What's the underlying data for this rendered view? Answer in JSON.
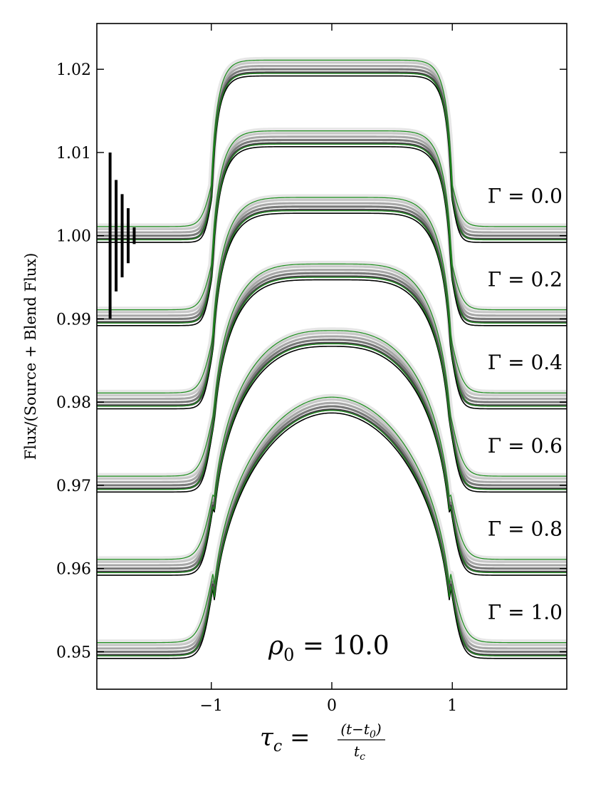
{
  "chart_data": {
    "type": "line",
    "ylabel": "Flux/(Source + Blend Flux)",
    "xlabel": {
      "lhs": "τ",
      "lhs_sub": "c",
      "numerator": "(t−t",
      "numerator_sub": "0",
      "numerator_close": ")",
      "denominator": "t",
      "denominator_sub": "c"
    },
    "annotation": {
      "symbol": "ρ",
      "sub": "0",
      "text": " = 10.0"
    },
    "xlim": [
      -1.95,
      1.95
    ],
    "ylim": [
      0.9455,
      1.0255
    ],
    "x_ticks": [
      {
        "value": -1,
        "label": "−1"
      },
      {
        "value": 0,
        "label": "0"
      },
      {
        "value": 1,
        "label": "1"
      }
    ],
    "y_ticks": [
      {
        "value": 0.95,
        "label": "0.95"
      },
      {
        "value": 0.96,
        "label": "0.96"
      },
      {
        "value": 0.97,
        "label": "0.97"
      },
      {
        "value": 0.98,
        "label": "0.98"
      },
      {
        "value": 0.99,
        "label": "0.99"
      },
      {
        "value": 1.0,
        "label": "1.00"
      },
      {
        "value": 1.01,
        "label": "1.01"
      },
      {
        "value": 1.02,
        "label": "1.02"
      }
    ],
    "series": [
      {
        "label": "Γ = 0.0",
        "gamma": 0.0,
        "baseline": 1.0,
        "peak": 1.02
      },
      {
        "label": "Γ = 0.2",
        "gamma": 0.2,
        "baseline": 0.99,
        "peak": 1.0115
      },
      {
        "label": "Γ = 0.4",
        "gamma": 0.4,
        "baseline": 0.98,
        "peak": 1.0035
      },
      {
        "label": "Γ = 0.6",
        "gamma": 0.6,
        "baseline": 0.97,
        "peak": 0.9955
      },
      {
        "label": "Γ = 0.8",
        "gamma": 0.8,
        "baseline": 0.96,
        "peak": 0.9875
      },
      {
        "label": "Γ = 1.0",
        "gamma": 1.0,
        "baseline": 0.95,
        "peak": 0.9795
      }
    ],
    "error_bars": [
      {
        "x": -1.84,
        "center": 1.0,
        "half": 0.01
      },
      {
        "x": -1.79,
        "center": 1.0,
        "half": 0.0067
      },
      {
        "x": -1.74,
        "center": 1.0,
        "half": 0.005
      },
      {
        "x": -1.69,
        "center": 1.0,
        "half": 0.0033
      },
      {
        "x": -1.64,
        "center": 1.0,
        "half": 0.001
      }
    ],
    "band_colors": [
      "#e6e6e6",
      "#c8c8c8",
      "#a8a8a8",
      "#7a7a7a",
      "#444444",
      "#000000"
    ],
    "outline_color": "#1a8c1a"
  }
}
